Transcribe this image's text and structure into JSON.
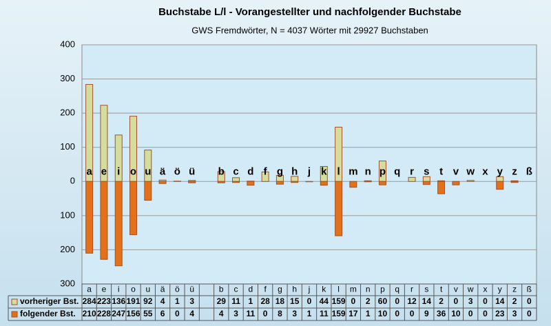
{
  "chart_data": {
    "type": "bar",
    "title": "Buchstabe L/l - Vorangestellter und nachfolgender Buchstabe",
    "subtitle": "GWS Fremdwörter,  N = 4037 Wörter mit 29927 Buchstaben",
    "categories": [
      "a",
      "e",
      "i",
      "o",
      "u",
      "ä",
      "ö",
      "ü",
      null,
      "b",
      "c",
      "d",
      "f",
      "g",
      "h",
      "j",
      "k",
      "l",
      "m",
      "n",
      "p",
      "q",
      "r",
      "s",
      "t",
      "v",
      "w",
      "x",
      "y",
      "z",
      "ß"
    ],
    "series": [
      {
        "name": "vorheriger Bst.",
        "color": "#d6dc9c",
        "stroke": "#a0522d",
        "values": [
          284,
          223,
          136,
          191,
          92,
          4,
          1,
          3,
          null,
          29,
          11,
          1,
          28,
          18,
          15,
          0,
          44,
          159,
          0,
          2,
          60,
          0,
          12,
          14,
          2,
          0,
          3,
          0,
          14,
          2,
          0
        ]
      },
      {
        "name": "folgender Bst.",
        "color": "#e2711a",
        "stroke": "#a0522d",
        "downward": true,
        "values": [
          210,
          228,
          247,
          156,
          55,
          6,
          0,
          4,
          null,
          4,
          3,
          11,
          0,
          8,
          3,
          1,
          11,
          159,
          17,
          1,
          10,
          0,
          0,
          9,
          36,
          10,
          0,
          0,
          23,
          3,
          0
        ]
      }
    ],
    "ylim": [
      -300,
      400
    ],
    "yticks": [
      {
        "value": -300,
        "label": "300"
      },
      {
        "value": -200,
        "label": "200"
      },
      {
        "value": -100,
        "label": "100"
      },
      0,
      100,
      200,
      300,
      400
    ],
    "negative_tick_color": "#cc0000",
    "grid": true
  }
}
